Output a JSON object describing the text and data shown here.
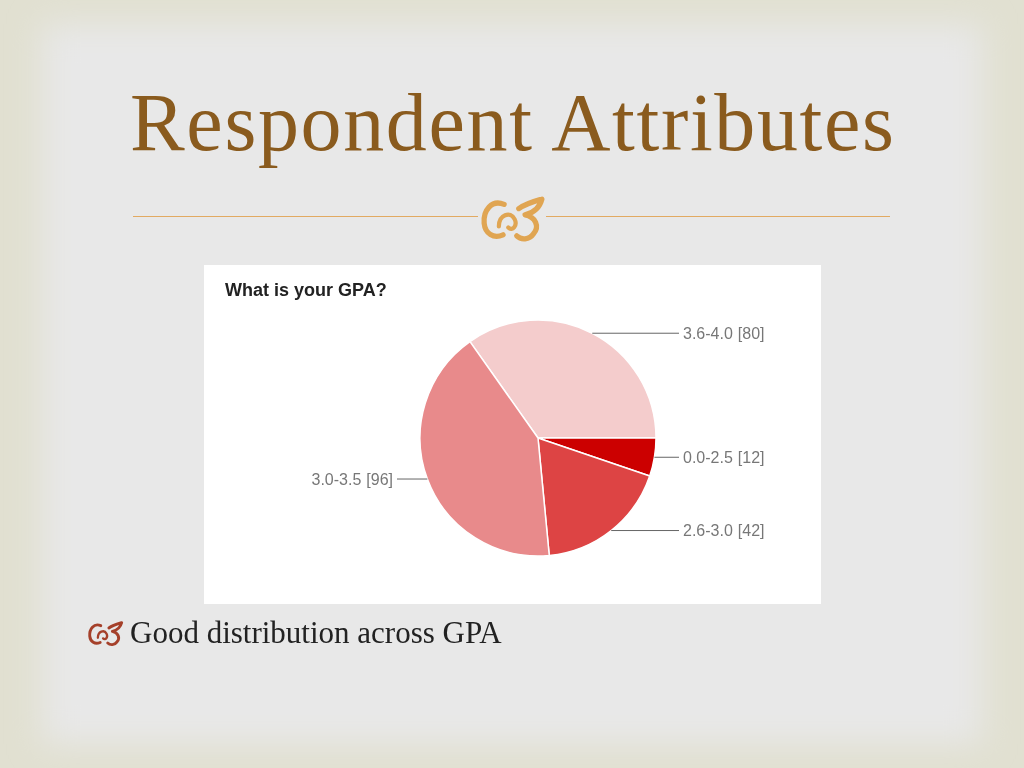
{
  "chart_data": {
    "type": "pie",
    "title": "Respondent Attributes",
    "subtitle": "What is your GPA?",
    "categories": [
      "3.6-4.0",
      "0.0-2.5",
      "2.6-3.0",
      "3.0-3.5"
    ],
    "values": [
      80,
      12,
      42,
      96
    ],
    "value_labels": [
      "[80]",
      "[12]",
      "[42]",
      "[96]"
    ],
    "colors": [
      "#f4cccc",
      "#cc0000",
      "#dd4444",
      "#e88a8b"
    ],
    "annotations": [
      "Good distribution across GPA"
    ]
  }
}
